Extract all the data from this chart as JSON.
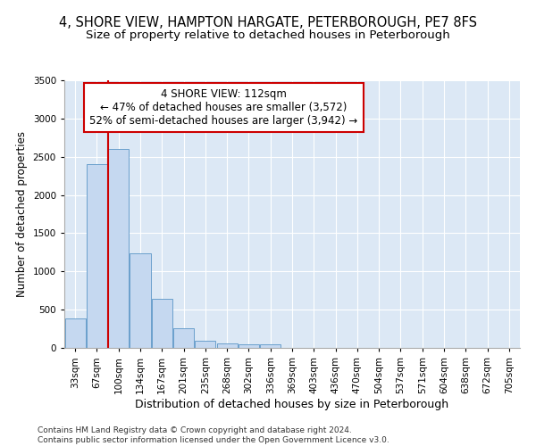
{
  "title1": "4, SHORE VIEW, HAMPTON HARGATE, PETERBOROUGH, PE7 8FS",
  "title2": "Size of property relative to detached houses in Peterborough",
  "xlabel": "Distribution of detached houses by size in Peterborough",
  "ylabel": "Number of detached properties",
  "categories": [
    "33sqm",
    "67sqm",
    "100sqm",
    "134sqm",
    "167sqm",
    "201sqm",
    "235sqm",
    "268sqm",
    "302sqm",
    "336sqm",
    "369sqm",
    "403sqm",
    "436sqm",
    "470sqm",
    "504sqm",
    "537sqm",
    "571sqm",
    "604sqm",
    "638sqm",
    "672sqm",
    "705sqm"
  ],
  "values": [
    390,
    2400,
    2600,
    1240,
    640,
    260,
    90,
    55,
    50,
    45,
    0,
    0,
    0,
    0,
    0,
    0,
    0,
    0,
    0,
    0,
    0
  ],
  "bar_color": "#c5d8f0",
  "bar_edge_color": "#6aa0cc",
  "vline_color": "#cc0000",
  "annotation_text": "4 SHORE VIEW: 112sqm\n← 47% of detached houses are smaller (3,572)\n52% of semi-detached houses are larger (3,942) →",
  "annotation_box_color": "#ffffff",
  "annotation_box_edge": "#cc0000",
  "ylim": [
    0,
    3500
  ],
  "yticks": [
    0,
    500,
    1000,
    1500,
    2000,
    2500,
    3000,
    3500
  ],
  "footer": "Contains HM Land Registry data © Crown copyright and database right 2024.\nContains public sector information licensed under the Open Government Licence v3.0.",
  "bg_color": "#dce8f5",
  "title1_fontsize": 10.5,
  "title2_fontsize": 9.5,
  "xlabel_fontsize": 9,
  "ylabel_fontsize": 8.5,
  "tick_fontsize": 7.5,
  "annotation_fontsize": 8.5,
  "footer_fontsize": 6.5
}
